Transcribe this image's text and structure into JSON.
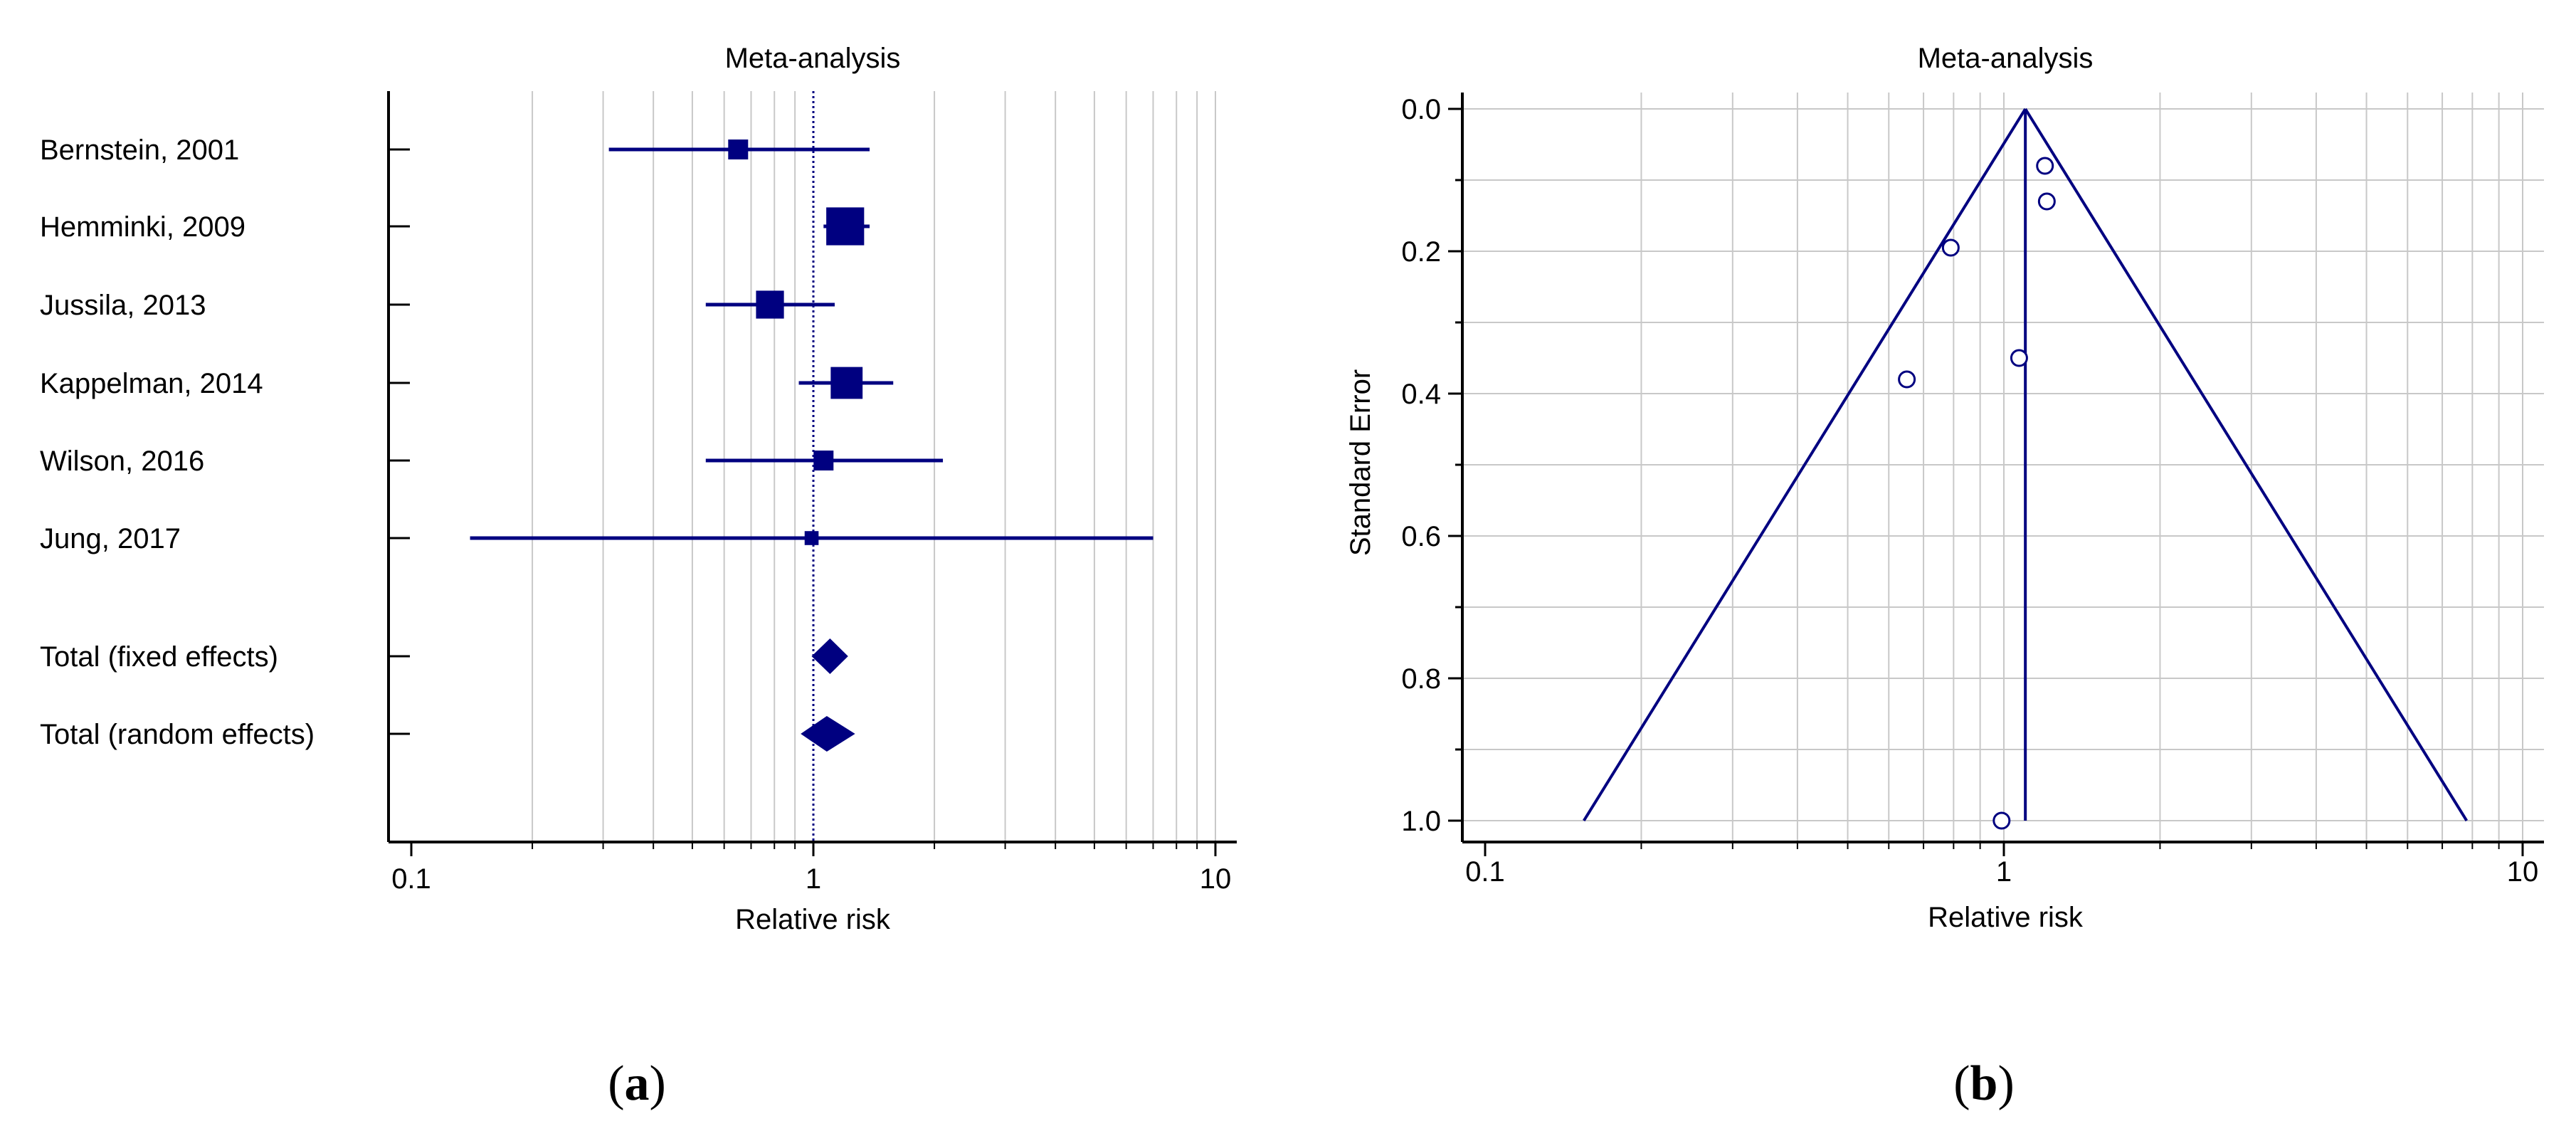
{
  "chart_data": [
    {
      "type": "forest",
      "title": "Meta-analysis",
      "xlabel": "Relative risk",
      "xscale": "log",
      "xlim": [
        0.1,
        10
      ],
      "xticks": [
        0.1,
        1,
        10
      ],
      "xtick_labels": [
        "0.1",
        "1",
        "10"
      ],
      "reference_line": 1,
      "grid": "vertical",
      "studies": [
        {
          "label": "Bernstein, 2001",
          "rr": 0.65,
          "ci_low": 0.31,
          "ci_high": 1.38,
          "weight": 1.0
        },
        {
          "label": "Hemminki, 2009",
          "rr": 1.2,
          "ci_low": 1.06,
          "ci_high": 1.38,
          "weight": 1.9
        },
        {
          "label": "Jussila, 2013",
          "rr": 0.78,
          "ci_low": 0.54,
          "ci_high": 1.13,
          "weight": 1.4
        },
        {
          "label": "Kappelman, 2014",
          "rr": 1.21,
          "ci_low": 0.92,
          "ci_high": 1.58,
          "weight": 1.6
        },
        {
          "label": "Wilson, 2016",
          "rr": 1.06,
          "ci_low": 0.54,
          "ci_high": 2.1,
          "weight": 1.0
        },
        {
          "label": "Jung, 2017",
          "rr": 0.99,
          "ci_low": 0.14,
          "ci_high": 7.0,
          "weight": 0.7
        }
      ],
      "totals": [
        {
          "label": "Total (fixed effects)",
          "rr": 1.1,
          "ci_low": 0.99,
          "ci_high": 1.22
        },
        {
          "label": "Total (random effects)",
          "rr": 1.08,
          "ci_low": 0.93,
          "ci_high": 1.27
        }
      ],
      "caption_prefix": "(",
      "caption_letter": "a",
      "caption_suffix": ")"
    },
    {
      "type": "funnel",
      "title": "Meta-analysis",
      "xlabel": "Relative risk",
      "ylabel": "Standard Error",
      "xscale": "log",
      "xlim": [
        0.1,
        10
      ],
      "xticks": [
        0.1,
        1,
        10
      ],
      "xtick_labels": [
        "0.1",
        "1",
        "10"
      ],
      "ylim": [
        0,
        1.0
      ],
      "yticks": [
        0,
        0.2,
        0.4,
        0.6,
        0.8,
        1.0
      ],
      "ytick_labels": [
        "0.0",
        "0.2",
        "0.4",
        "0.6",
        "0.8",
        "1.0"
      ],
      "y_inverted": true,
      "grid": "both",
      "pooled_rr": 1.1,
      "funnel_bottom_se": 1.0,
      "funnel_bottom_left_rr": 0.155,
      "funnel_bottom_right_rr": 7.8,
      "points": [
        {
          "rr": 1.2,
          "se": 0.08
        },
        {
          "rr": 1.21,
          "se": 0.13
        },
        {
          "rr": 0.79,
          "se": 0.195
        },
        {
          "rr": 1.07,
          "se": 0.35
        },
        {
          "rr": 0.65,
          "se": 0.38
        },
        {
          "rr": 0.99,
          "se": 1.0
        }
      ],
      "caption_prefix": "(",
      "caption_letter": "b",
      "caption_suffix": ")"
    }
  ],
  "colors": {
    "mark": "#000080",
    "grid": "#c8c8c8",
    "axis": "#000000",
    "text": "#000000"
  }
}
